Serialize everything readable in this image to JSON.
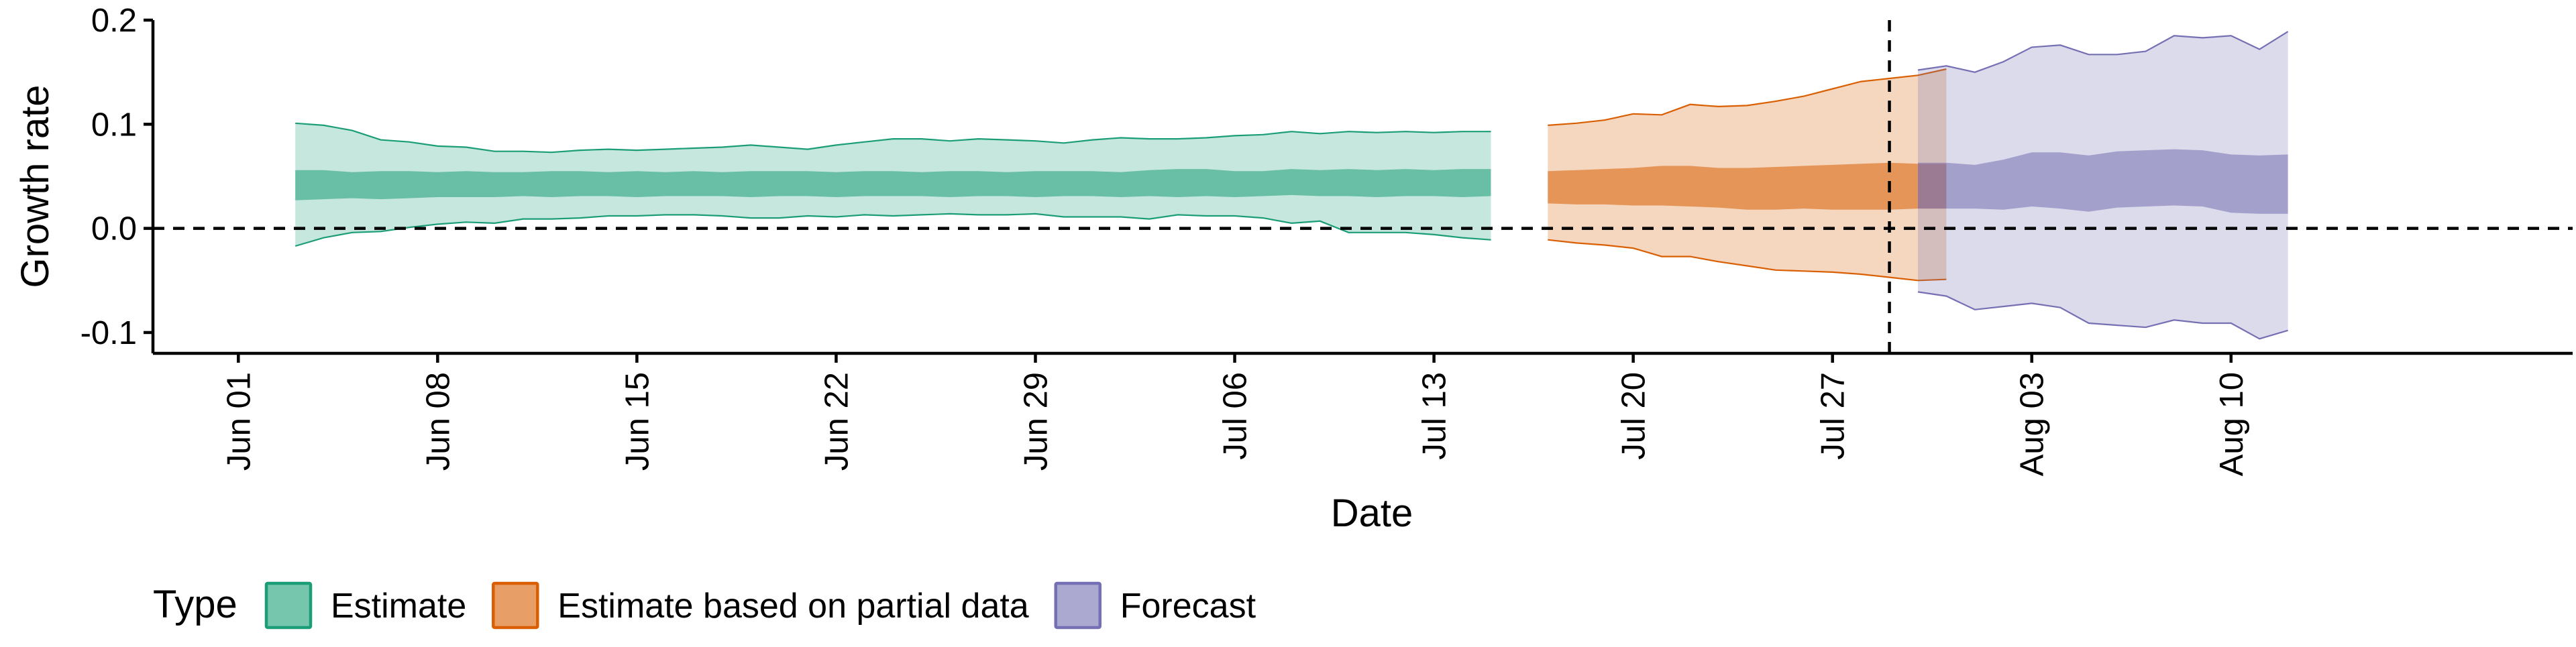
{
  "chart_data": {
    "type": "area",
    "title": "",
    "xlabel": "Date",
    "ylabel": "Growth rate",
    "x_tick_labels": [
      "Jun 01",
      "Jun 08",
      "Jun 15",
      "Jun 22",
      "Jun 29",
      "Jul 06",
      "Jul 13",
      "Jul 20",
      "Jul 27",
      "Aug 03",
      "Aug 10"
    ],
    "x_tick_dates": [
      "2020-06-01",
      "2020-06-08",
      "2020-06-15",
      "2020-06-22",
      "2020-06-29",
      "2020-07-06",
      "2020-07-13",
      "2020-07-20",
      "2020-07-27",
      "2020-08-03",
      "2020-08-10"
    ],
    "x_range": [
      "2020-05-29",
      "2020-08-22"
    ],
    "y_ticks": [
      -0.1,
      0.0,
      0.1,
      0.2
    ],
    "y_tick_labels": [
      "-0.1",
      "0.0",
      "0.1",
      "0.2"
    ],
    "ylim": [
      -0.12,
      0.2
    ],
    "grid": false,
    "reference_lines": [
      {
        "axis": "y",
        "value": 0.0,
        "style": "dashed"
      },
      {
        "axis": "x",
        "value": "2020-07-29",
        "style": "dashed"
      }
    ],
    "legend": {
      "title": "Type",
      "position": "bottom-left",
      "entries": [
        "Estimate",
        "Estimate based on partial data",
        "Forecast"
      ]
    },
    "series": [
      {
        "name": "Estimate",
        "color": "#1B9E77",
        "start_date": "2020-06-03",
        "outer_upper": [
          0.101,
          0.099,
          0.094,
          0.085,
          0.083,
          0.079,
          0.078,
          0.074,
          0.074,
          0.073,
          0.075,
          0.076,
          0.075,
          0.076,
          0.077,
          0.078,
          0.08,
          0.078,
          0.076,
          0.08,
          0.083,
          0.086,
          0.086,
          0.084,
          0.086,
          0.085,
          0.084,
          0.082,
          0.085,
          0.087,
          0.086,
          0.086,
          0.087,
          0.089,
          0.09,
          0.093,
          0.091,
          0.093,
          0.092,
          0.093,
          0.092,
          0.093,
          0.093
        ],
        "inner_upper": [
          0.056,
          0.056,
          0.054,
          0.055,
          0.055,
          0.054,
          0.055,
          0.054,
          0.054,
          0.055,
          0.055,
          0.054,
          0.055,
          0.054,
          0.055,
          0.054,
          0.055,
          0.055,
          0.055,
          0.054,
          0.055,
          0.055,
          0.054,
          0.055,
          0.055,
          0.054,
          0.055,
          0.055,
          0.055,
          0.054,
          0.056,
          0.057,
          0.057,
          0.055,
          0.055,
          0.057,
          0.056,
          0.057,
          0.056,
          0.057,
          0.056,
          0.057,
          0.057
        ],
        "inner_lower": [
          0.027,
          0.028,
          0.029,
          0.028,
          0.029,
          0.03,
          0.03,
          0.03,
          0.031,
          0.03,
          0.031,
          0.031,
          0.03,
          0.031,
          0.031,
          0.031,
          0.03,
          0.031,
          0.031,
          0.03,
          0.031,
          0.031,
          0.031,
          0.03,
          0.031,
          0.031,
          0.03,
          0.031,
          0.031,
          0.03,
          0.031,
          0.03,
          0.031,
          0.03,
          0.031,
          0.032,
          0.031,
          0.031,
          0.03,
          0.031,
          0.031,
          0.03,
          0.031
        ],
        "outer_lower": [
          -0.017,
          -0.009,
          -0.004,
          -0.003,
          0.001,
          0.004,
          0.006,
          0.005,
          0.009,
          0.009,
          0.01,
          0.012,
          0.012,
          0.013,
          0.013,
          0.012,
          0.01,
          0.01,
          0.012,
          0.011,
          0.013,
          0.012,
          0.013,
          0.014,
          0.013,
          0.013,
          0.014,
          0.011,
          0.011,
          0.011,
          0.009,
          0.013,
          0.012,
          0.012,
          0.01,
          0.005,
          0.007,
          -0.004,
          -0.004,
          -0.004,
          -0.006,
          -0.009,
          -0.011
        ]
      },
      {
        "name": "Estimate based on partial data",
        "color": "#D95F02",
        "start_date": "2020-07-17",
        "outer_upper": [
          0.099,
          0.101,
          0.104,
          0.11,
          0.109,
          0.119,
          0.117,
          0.118,
          0.122,
          0.127,
          0.134,
          0.141,
          0.144,
          0.147,
          0.153
        ],
        "inner_upper": [
          0.055,
          0.056,
          0.057,
          0.058,
          0.06,
          0.06,
          0.058,
          0.058,
          0.059,
          0.06,
          0.061,
          0.062,
          0.063,
          0.062,
          0.062
        ],
        "inner_lower": [
          0.024,
          0.023,
          0.023,
          0.022,
          0.022,
          0.021,
          0.02,
          0.018,
          0.018,
          0.019,
          0.018,
          0.018,
          0.018,
          0.019,
          0.019
        ],
        "outer_lower": [
          -0.011,
          -0.014,
          -0.016,
          -0.019,
          -0.027,
          -0.027,
          -0.032,
          -0.036,
          -0.04,
          -0.041,
          -0.042,
          -0.044,
          -0.047,
          -0.05,
          -0.049
        ]
      },
      {
        "name": "Forecast",
        "color": "#7570B3",
        "start_date": "2020-07-30",
        "outer_upper": [
          0.152,
          0.156,
          0.15,
          0.16,
          0.174,
          0.176,
          0.167,
          0.167,
          0.17,
          0.185,
          0.183,
          0.185,
          0.172,
          0.189
        ],
        "inner_upper": [
          0.063,
          0.063,
          0.061,
          0.066,
          0.073,
          0.073,
          0.07,
          0.074,
          0.075,
          0.076,
          0.075,
          0.071,
          0.07,
          0.071
        ],
        "inner_lower": [
          0.019,
          0.019,
          0.019,
          0.018,
          0.021,
          0.019,
          0.016,
          0.02,
          0.021,
          0.022,
          0.021,
          0.015,
          0.014,
          0.014
        ],
        "outer_lower": [
          -0.061,
          -0.065,
          -0.078,
          -0.075,
          -0.072,
          -0.076,
          -0.091,
          -0.093,
          -0.095,
          -0.088,
          -0.091,
          -0.091,
          -0.106,
          -0.098
        ]
      }
    ]
  }
}
